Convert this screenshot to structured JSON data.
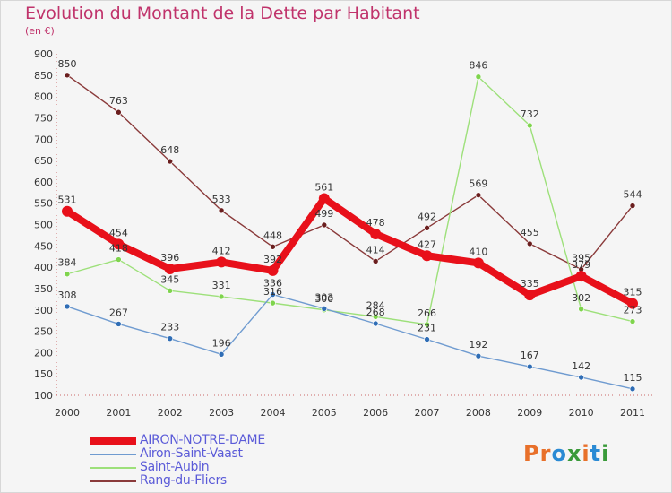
{
  "title": "Evolution du Montant de la Dette par Habitant",
  "unit": "(en €)",
  "logo": {
    "text": "Proxiti",
    "colors": [
      "#e8702a",
      "#e8702a",
      "#2a8ad4",
      "#3a9a3a",
      "#e8702a",
      "#2a8ad4",
      "#3a9a3a"
    ]
  },
  "chart_data": {
    "type": "line",
    "x": [
      "2000",
      "2001",
      "2002",
      "2003",
      "2004",
      "2005",
      "2006",
      "2007",
      "2008",
      "2009",
      "2010",
      "2011"
    ],
    "ylim": [
      100,
      900
    ],
    "yticks": [
      100,
      150,
      200,
      250,
      300,
      350,
      400,
      450,
      500,
      550,
      600,
      650,
      700,
      750,
      800,
      850,
      900
    ],
    "grid": false,
    "legend_position": "bottom-left",
    "series": [
      {
        "name": "AIRON-NOTRE-DAME",
        "color": "#e8101a",
        "marker": "#e8101a",
        "values": [
          531,
          454,
          396,
          412,
          392,
          561,
          478,
          427,
          410,
          335,
          379,
          315
        ]
      },
      {
        "name": "Airon-Saint-Vaast",
        "color": "#6f9bd0",
        "marker": "#2f6db5",
        "values": [
          308,
          267,
          233,
          196,
          336,
          303,
          268,
          231,
          192,
          167,
          142,
          115
        ]
      },
      {
        "name": "Saint-Aubin",
        "color": "#9de07a",
        "marker": "#7fd44d",
        "values": [
          384,
          418,
          345,
          331,
          316,
          300,
          284,
          266,
          846,
          732,
          302,
          273
        ]
      },
      {
        "name": "Rang-du-Fliers",
        "color": "#8a3a3a",
        "marker": "#6a1e1e",
        "values": [
          850,
          763,
          648,
          533,
          448,
          499,
          414,
          492,
          569,
          455,
          395,
          544
        ]
      }
    ]
  }
}
